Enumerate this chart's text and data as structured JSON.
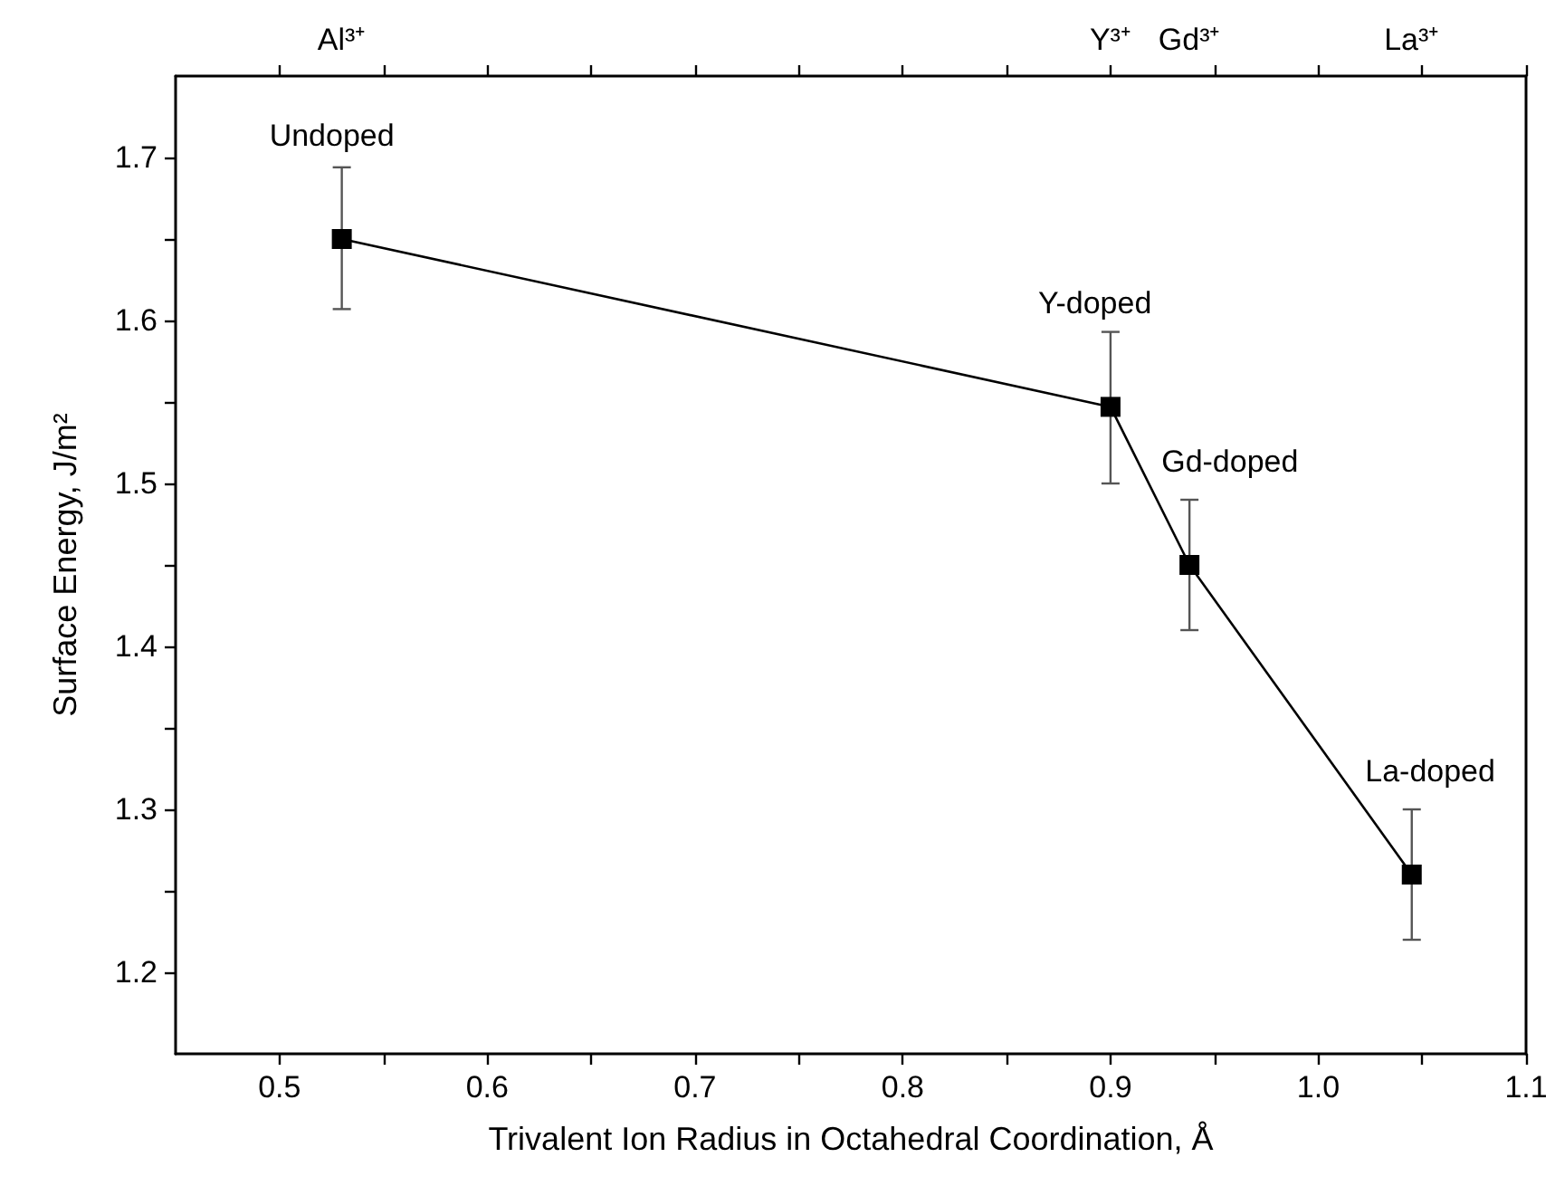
{
  "chart_data": {
    "type": "line",
    "xlabel": "Trivalent Ion Radius in Octahedral Coordination, Å",
    "ylabel": "Surface Energy, J/m²",
    "x": [
      0.53,
      0.9,
      0.938,
      1.045
    ],
    "series": [
      {
        "color": "#000000",
        "values": [
          1.65,
          1.547,
          1.45,
          1.26
        ],
        "errors": [
          [
            1.607,
            1.694
          ],
          [
            1.5,
            1.593
          ],
          [
            1.41,
            1.49
          ],
          [
            1.22,
            1.3
          ]
        ]
      }
    ],
    "xlim": [
      0.45,
      1.1
    ],
    "xticks": [
      0.5,
      {
        "value": 0.55,
        "label": null
      },
      0.6,
      {
        "value": 0.65,
        "label": null
      },
      0.7,
      {
        "value": 0.75,
        "label": null
      },
      0.8,
      {
        "value": 0.85,
        "label": null
      },
      0.9,
      {
        "value": 0.95,
        "label": null
      },
      {
        "value": 1.0,
        "label": "1.0"
      },
      {
        "value": 1.05,
        "label": null
      },
      1.1
    ],
    "ylim": [
      1.15,
      1.75
    ],
    "yticks": [
      1.2,
      {
        "value": 1.25,
        "label": null
      },
      1.3,
      {
        "value": 1.35,
        "label": null
      },
      1.4,
      {
        "value": 1.45,
        "label": null
      },
      1.5,
      {
        "value": 1.55,
        "label": null
      },
      1.6,
      {
        "value": 1.65,
        "label": null
      },
      1.7
    ],
    "annotations": [
      "Al³⁺",
      "Y³⁺",
      "Gd³⁺",
      "La³⁺",
      {
        "text": "Undoped",
        "x": 0.53,
        "y": 1.65
      },
      {
        "text": "Y-doped",
        "x": 0.9,
        "y": 1.547
      },
      {
        "text": "Gd-doped",
        "x": 0.938,
        "y": 1.45
      },
      {
        "text": "La-doped",
        "x": 1.045,
        "y": 1.26
      }
    ],
    "marker": "square",
    "line_style": "solid"
  }
}
